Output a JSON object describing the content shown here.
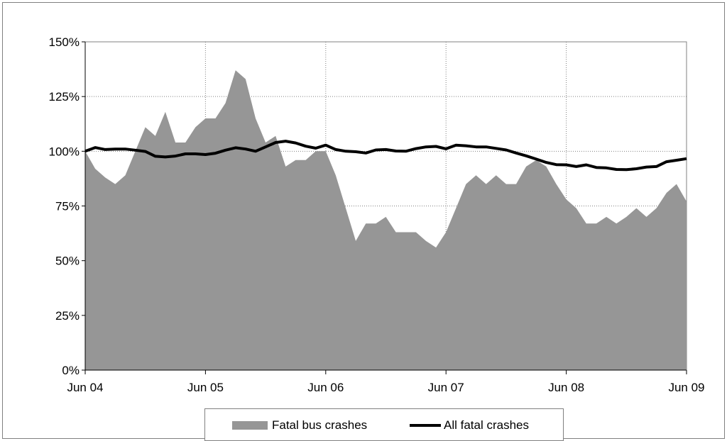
{
  "chart_data": {
    "type": "area",
    "x_tick_labels": [
      "Jun 04",
      "Jun 05",
      "Jun 06",
      "Jun 07",
      "Jun 08",
      "Jun 09"
    ],
    "y_tick_labels": [
      "0%",
      "25%",
      "50%",
      "75%",
      "100%",
      "125%",
      "150%"
    ],
    "ylim": [
      0,
      150
    ],
    "grid": true,
    "legend_position": "bottom",
    "series": [
      {
        "name": "Fatal bus crashes",
        "style": "area",
        "color": "#969696",
        "values": [
          100,
          92,
          88,
          85,
          89,
          100,
          111,
          107,
          118,
          104,
          104,
          111,
          115,
          115,
          122,
          137,
          133,
          115,
          104,
          107,
          93,
          96,
          96,
          100,
          100,
          89,
          74,
          59,
          67,
          67,
          70,
          63,
          63,
          63,
          59,
          56,
          63,
          74,
          85,
          89,
          85,
          89,
          85,
          85,
          93,
          96,
          93,
          85,
          78,
          74,
          67,
          67,
          70,
          67,
          70,
          74,
          70,
          74,
          81,
          85,
          77
        ]
      },
      {
        "name": "All fatal crashes",
        "style": "line",
        "color": "#000000",
        "values": [
          100,
          101.7,
          100.8,
          101,
          101,
          100.5,
          99.9,
          97.7,
          97.4,
          97.8,
          98.8,
          98.8,
          98.5,
          99.1,
          100.5,
          101.6,
          101,
          100,
          102,
          104,
          104.6,
          103.8,
          102.3,
          101.4,
          102.8,
          100.8,
          100,
          99.8,
          99.2,
          100.6,
          100.8,
          100.1,
          100,
          101.2,
          102,
          102.2,
          101.1,
          102.8,
          102.5,
          102,
          102,
          101.3,
          100.6,
          99.2,
          97.9,
          96.4,
          94.9,
          93.9,
          93.8,
          93,
          93.8,
          92.6,
          92.4,
          91.7,
          91.6,
          92,
          92.8,
          93,
          95.2,
          95.9,
          96.6
        ]
      }
    ]
  }
}
